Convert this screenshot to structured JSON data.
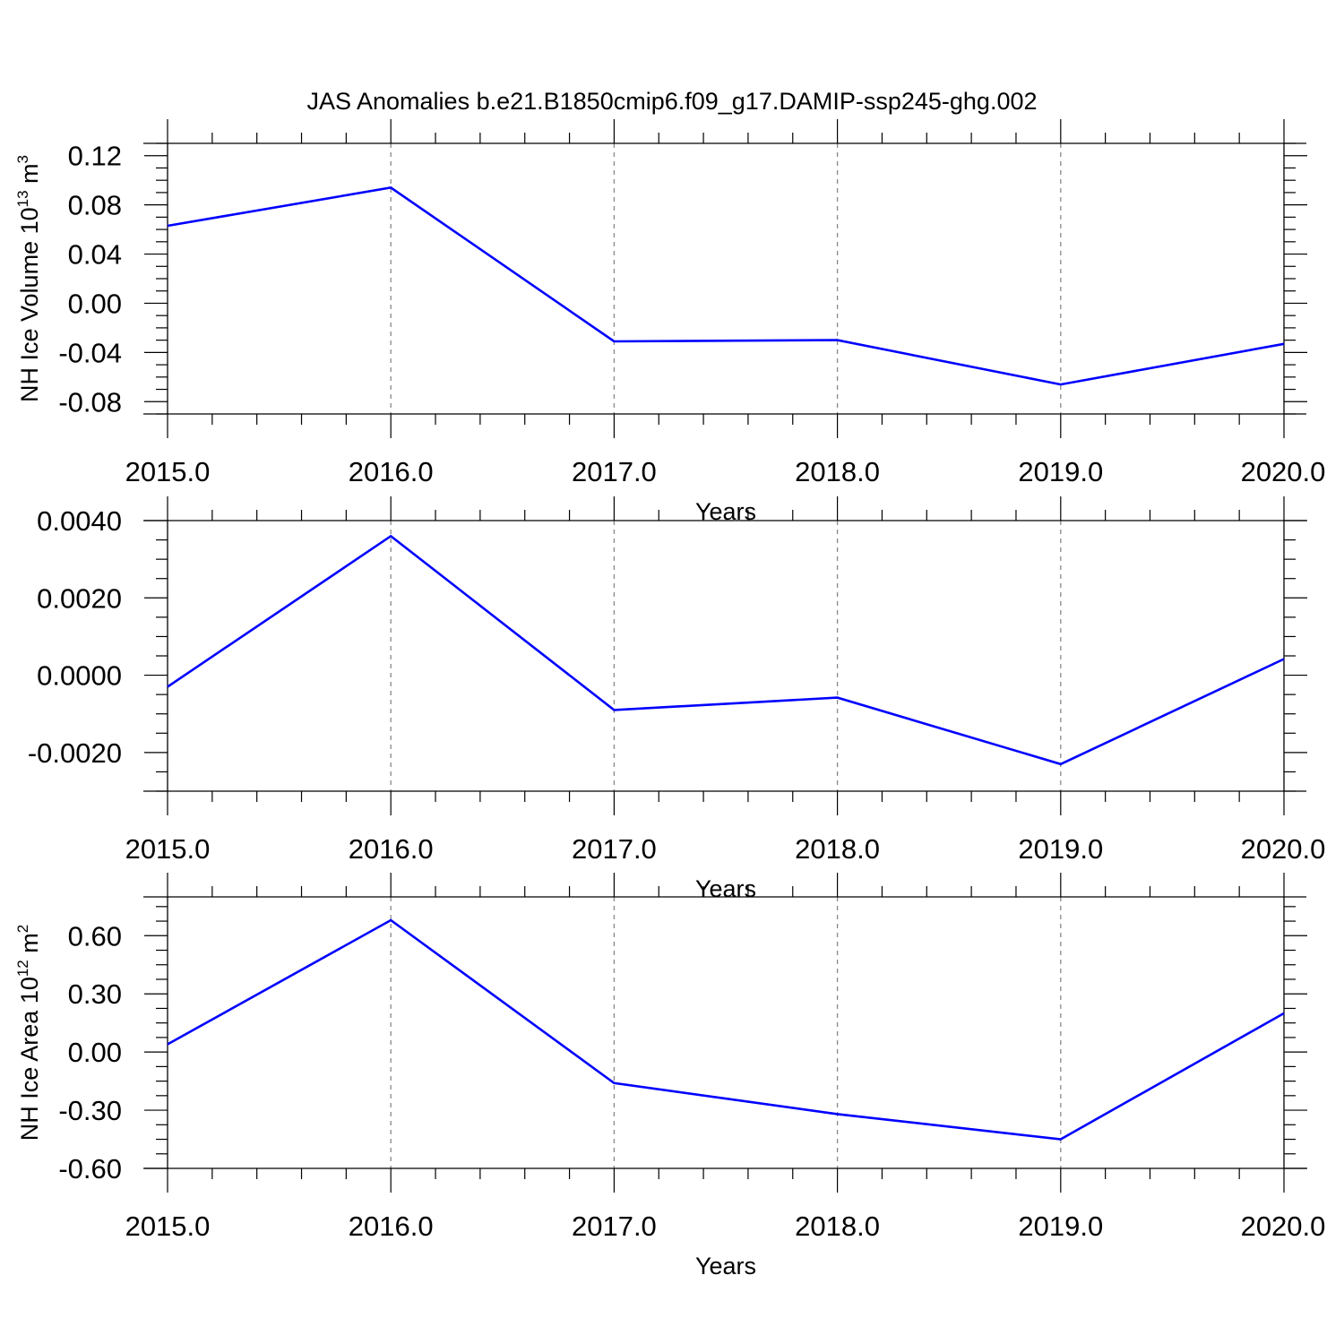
{
  "figure": {
    "title": "JAS Anomalies b.e21.B1850cmip6.f09_g17.DAMIP-ssp245-ghg.002"
  },
  "colors": {
    "line": "#0000ff",
    "axis": "#000000",
    "grid": "#888888"
  },
  "chart_data": [
    {
      "type": "line",
      "xlabel": "Years",
      "ylabel_main": "NH Ice Volume 10",
      "ylabel_sup": "13",
      "ylabel_unit": "m",
      "ylabel_unit_sup": "3",
      "xlim": [
        2015,
        2020
      ],
      "ylim": [
        -0.09,
        0.13
      ],
      "x_ticks": [
        2015,
        2016,
        2017,
        2018,
        2019,
        2020
      ],
      "x_tick_labels": [
        "2015.0",
        "2016.0",
        "2017.0",
        "2018.0",
        "2019.0",
        "2020.0"
      ],
      "y_ticks": [
        0.12,
        0.08,
        0.04,
        0.0,
        -0.04,
        -0.08
      ],
      "y_tick_labels": [
        "0.12",
        "0.08",
        "0.04",
        "0.00",
        "-0.04",
        "-0.08"
      ],
      "grid": "vertical dashed at major x ticks",
      "x": [
        2015,
        2016,
        2017,
        2018,
        2019,
        2020
      ],
      "values": [
        0.063,
        0.094,
        -0.031,
        -0.03,
        -0.066,
        -0.033
      ]
    },
    {
      "type": "line",
      "xlabel": "Years",
      "ylabel_main": "",
      "ylabel_sup": "",
      "ylabel_unit": "",
      "ylabel_unit_sup": "",
      "xlim": [
        2015,
        2020
      ],
      "ylim": [
        -0.003,
        0.004
      ],
      "x_ticks": [
        2015,
        2016,
        2017,
        2018,
        2019,
        2020
      ],
      "x_tick_labels": [
        "2015.0",
        "2016.0",
        "2017.0",
        "2018.0",
        "2019.0",
        "2020.0"
      ],
      "y_ticks": [
        0.004,
        0.002,
        0.0,
        -0.002
      ],
      "y_tick_labels": [
        "0.0040",
        "0.0020",
        "0.0000",
        "-0.0020"
      ],
      "grid": "vertical dashed at major x ticks",
      "x": [
        2015,
        2016,
        2017,
        2018,
        2019,
        2020
      ],
      "values": [
        -0.0003,
        0.0036,
        -0.0009,
        -0.00058,
        -0.0023,
        0.00042
      ]
    },
    {
      "type": "line",
      "xlabel": "Years",
      "ylabel_main": "NH Ice Area 10",
      "ylabel_sup": "12",
      "ylabel_unit": "m",
      "ylabel_unit_sup": "2",
      "xlim": [
        2015,
        2020
      ],
      "ylim": [
        -0.6,
        0.8
      ],
      "x_ticks": [
        2015,
        2016,
        2017,
        2018,
        2019,
        2020
      ],
      "x_tick_labels": [
        "2015.0",
        "2016.0",
        "2017.0",
        "2018.0",
        "2019.0",
        "2020.0"
      ],
      "y_ticks": [
        0.6,
        0.3,
        0.0,
        -0.3,
        -0.6
      ],
      "y_tick_labels": [
        "0.60",
        "0.30",
        "0.00",
        "-0.30",
        "-0.60"
      ],
      "grid": "vertical dashed at major x ticks",
      "x": [
        2015,
        2016,
        2017,
        2018,
        2019,
        2020
      ],
      "values": [
        0.04,
        0.68,
        -0.16,
        -0.32,
        -0.45,
        0.2
      ]
    }
  ]
}
